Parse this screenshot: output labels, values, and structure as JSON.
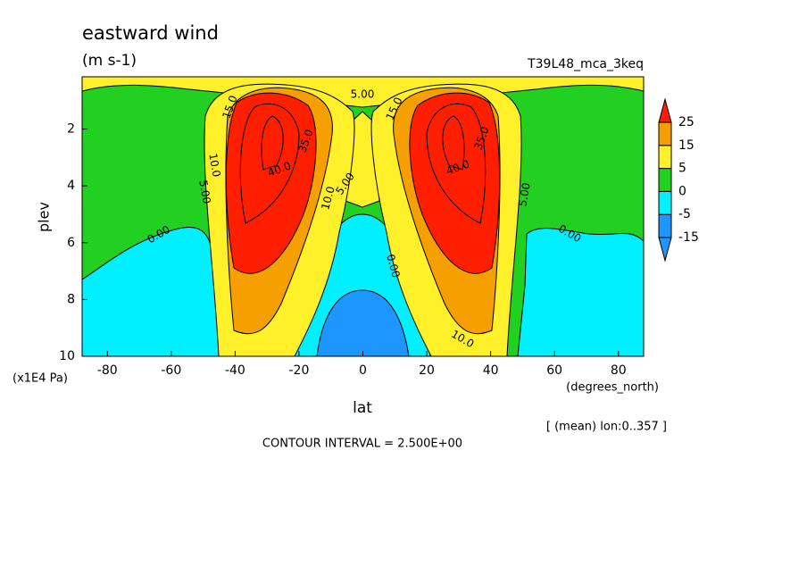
{
  "chart_data": {
    "type": "contour",
    "title": "eastward wind",
    "subtitle": "(m s-1)",
    "run_label": "T39L48_mca_3keq",
    "y_label": "plev",
    "y_unit": "(x1E4 Pa)",
    "x_label": "lat",
    "x_unit": "(degrees_north)",
    "note": "[ (mean) lon:0..357 ]",
    "contour_interval": "CONTOUR INTERVAL = 2.500E+00",
    "xlim": [
      -87.9,
      87.9
    ],
    "xticks": [
      -80,
      -60,
      -40,
      -20,
      0,
      20,
      40,
      60,
      80
    ],
    "ylim": [
      10,
      0.16
    ],
    "yticks": [
      2,
      4,
      6,
      8,
      10
    ],
    "colorbar": {
      "levels": [
        -15,
        -5,
        0,
        5,
        15,
        25
      ],
      "colors": [
        "#1e96ff",
        "#1e96ff",
        "#00f0ff",
        "#22d022",
        "#fff02a",
        "#f5a000",
        "#ff1e00"
      ]
    },
    "contour_labels": [
      {
        "value": 5,
        "label": "5.00"
      },
      {
        "value": 15,
        "label": "15.0"
      },
      {
        "value": 15,
        "label": "15.0"
      },
      {
        "value": 10,
        "label": "10.0"
      },
      {
        "value": 5,
        "label": "5.00"
      },
      {
        "value": 0,
        "label": "0.00"
      },
      {
        "value": 40,
        "label": "40.0"
      },
      {
        "value": 35,
        "label": "35.0"
      },
      {
        "value": 10,
        "label": "10.0"
      },
      {
        "value": 5,
        "label": "5.00"
      },
      {
        "value": 0,
        "label": "0.00"
      },
      {
        "value": 40,
        "label": "40.0"
      },
      {
        "value": 35,
        "label": "35.0"
      },
      {
        "value": 5,
        "label": "5.00"
      },
      {
        "value": 0,
        "label": "0.00"
      },
      {
        "value": 10,
        "label": "10.0"
      }
    ]
  }
}
